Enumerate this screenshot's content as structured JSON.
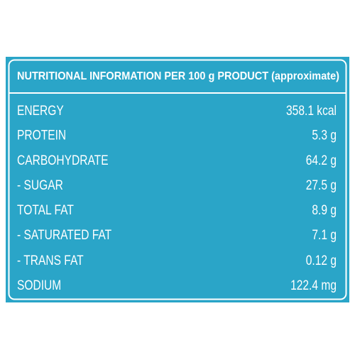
{
  "header": {
    "title": "NUTRITIONAL INFORMATION PER 100 g PRODUCT (approximate)"
  },
  "rows": [
    {
      "label": "ENERGY",
      "value": "358.1 kcal"
    },
    {
      "label": "PROTEIN",
      "value": "5.3 g"
    },
    {
      "label": "CARBOHYDRATE",
      "value": "64.2 g"
    },
    {
      "label": "- SUGAR",
      "value": "27.5 g"
    },
    {
      "label": "TOTAL FAT",
      "value": "8.9 g"
    },
    {
      "label": "- SATURATED FAT",
      "value": "7.1 g"
    },
    {
      "label": "- TRANS FAT",
      "value": "0.12 g"
    },
    {
      "label": "SODIUM",
      "value": "122.4 mg"
    }
  ]
}
